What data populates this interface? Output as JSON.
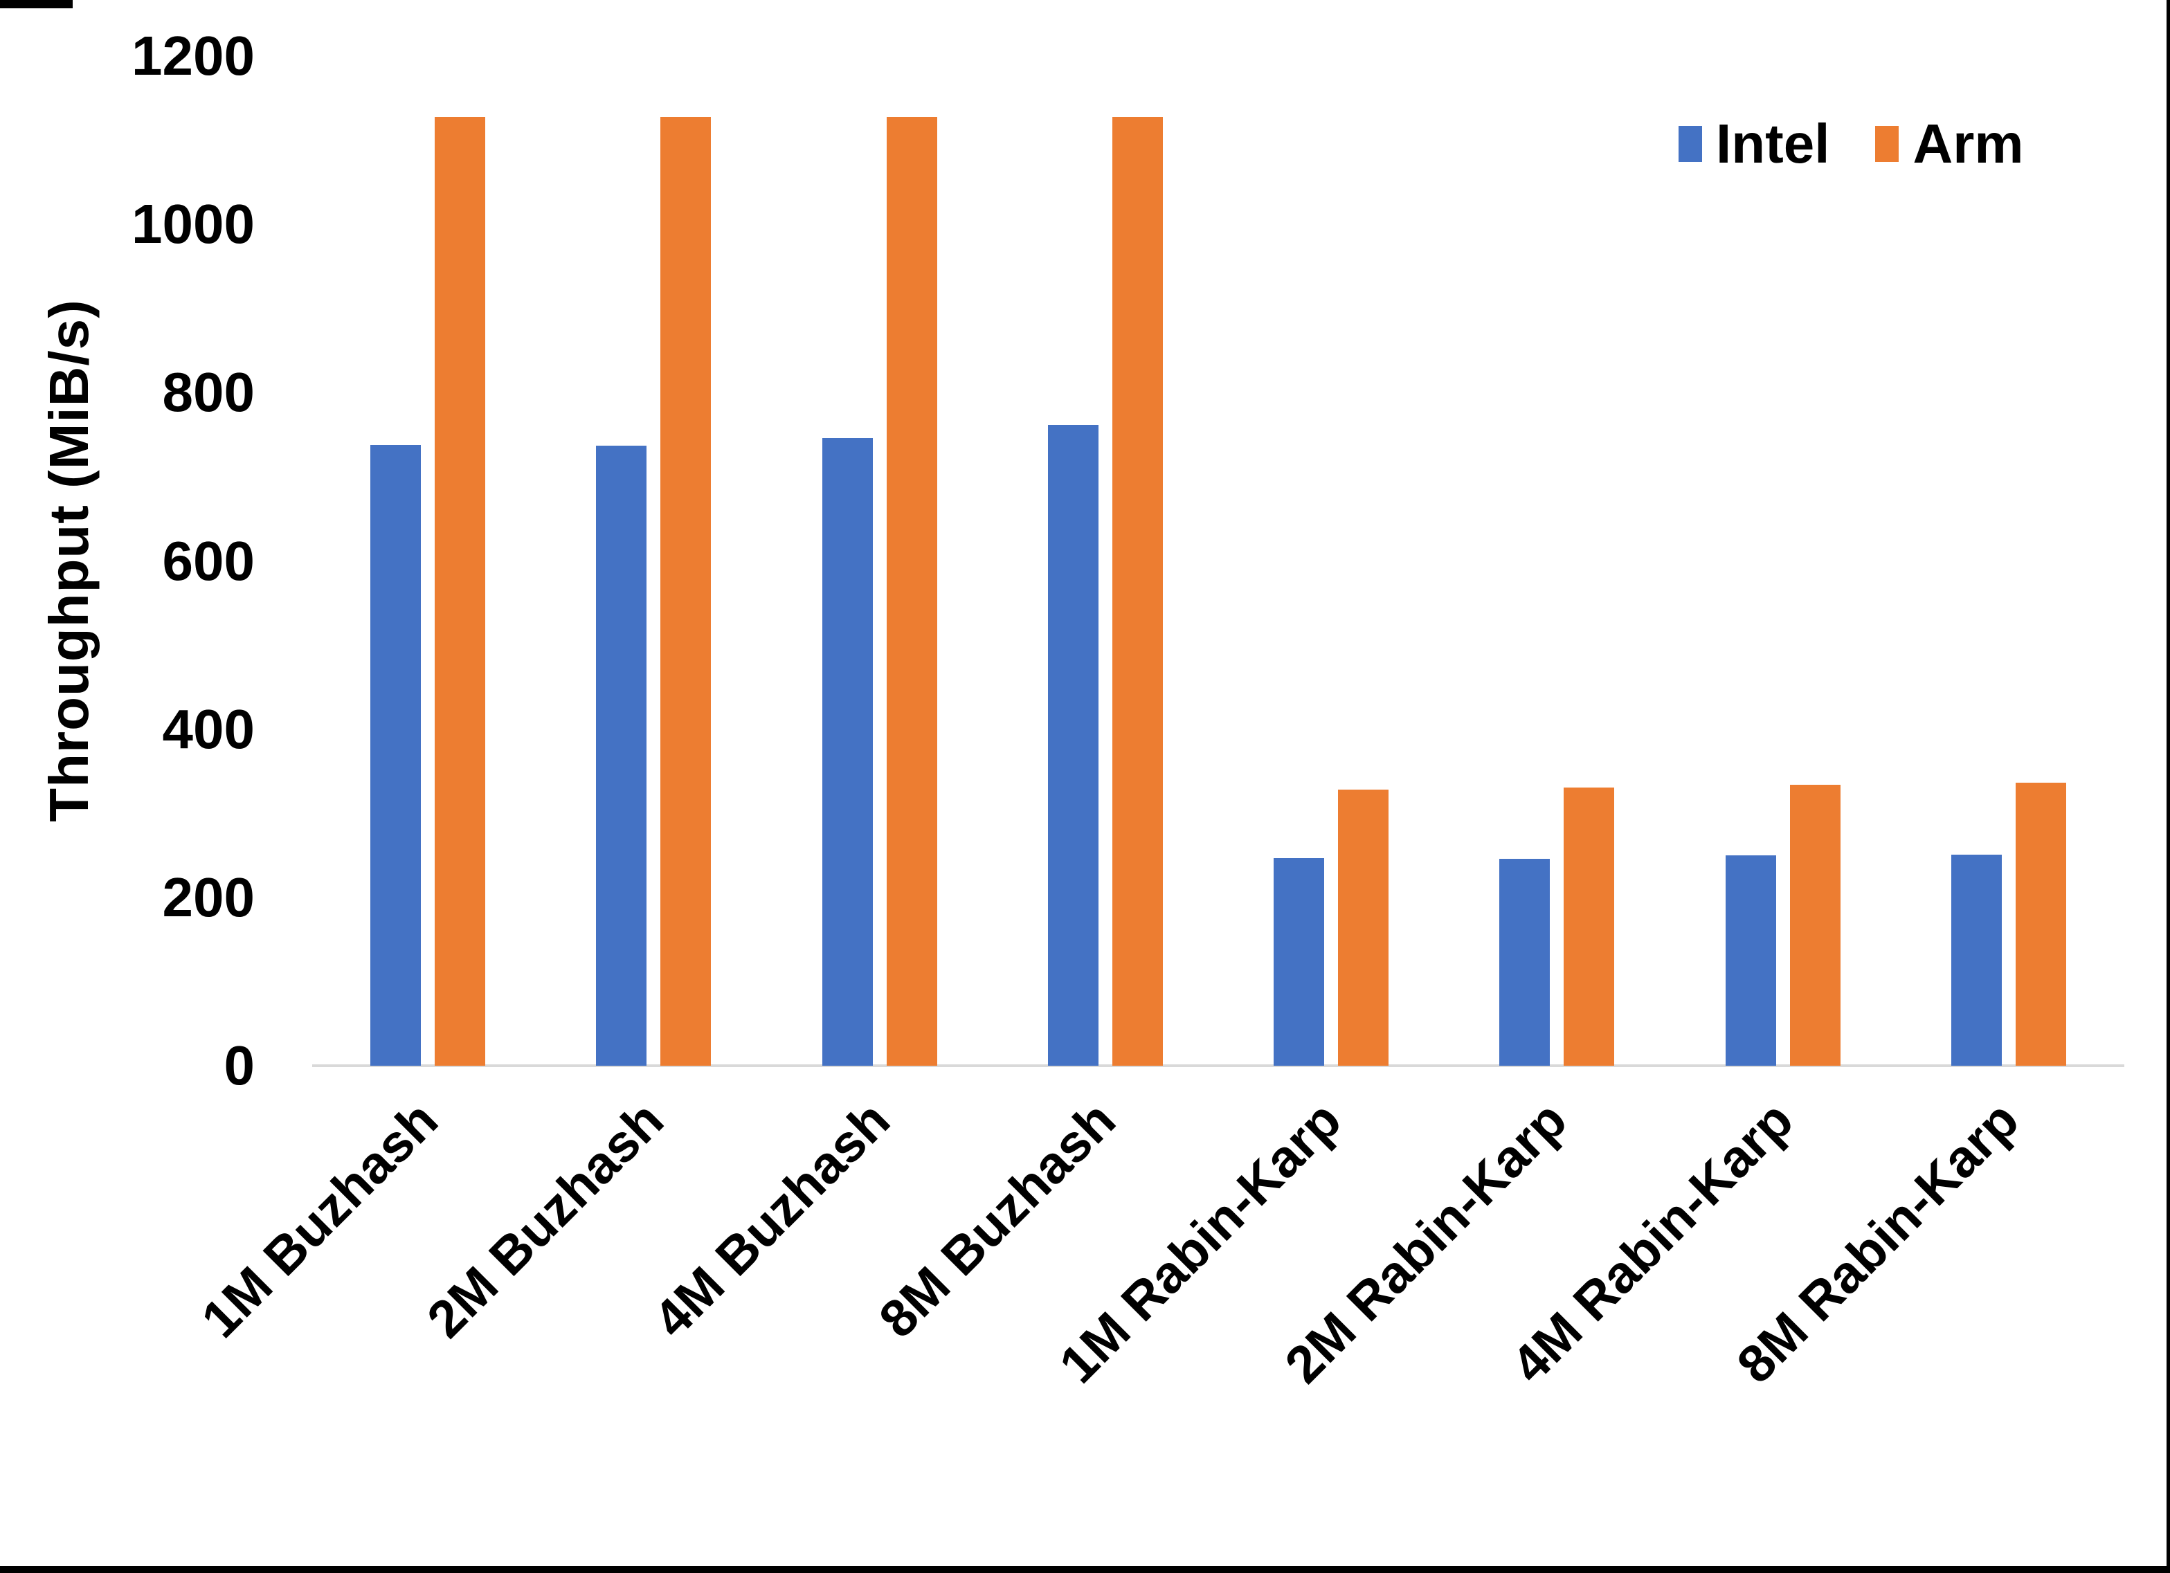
{
  "chart_data": {
    "type": "bar",
    "categories": [
      "1M Buzhash",
      "2M Buzhash",
      "4M Buzhash",
      "8M Buzhash",
      "1M Rabin-Karp",
      "2M Rabin-Karp",
      "4M Rabin-Karp",
      "8M Rabin-Karp"
    ],
    "series": [
      {
        "name": "Intel",
        "color": "#4472C4",
        "values": [
          738,
          737,
          746,
          762,
          247,
          246,
          250,
          251
        ]
      },
      {
        "name": "Arm",
        "color": "#ED7D31",
        "values": [
          1128,
          1128,
          1128,
          1128,
          328,
          331,
          334,
          336
        ]
      }
    ],
    "title": "",
    "xlabel": "",
    "ylabel": "Throughput (MiB/s)",
    "ylim": [
      0,
      1200
    ],
    "yticks": [
      0,
      200,
      400,
      600,
      800,
      1000,
      1200
    ],
    "grid": false,
    "legend_position": "top-right",
    "axis_line_color": "#d9d9d9",
    "text_color": "#000000"
  },
  "legend": {
    "items": [
      {
        "label": "Intel",
        "color": "#4472C4"
      },
      {
        "label": "Arm",
        "color": "#ED7D31"
      }
    ]
  }
}
